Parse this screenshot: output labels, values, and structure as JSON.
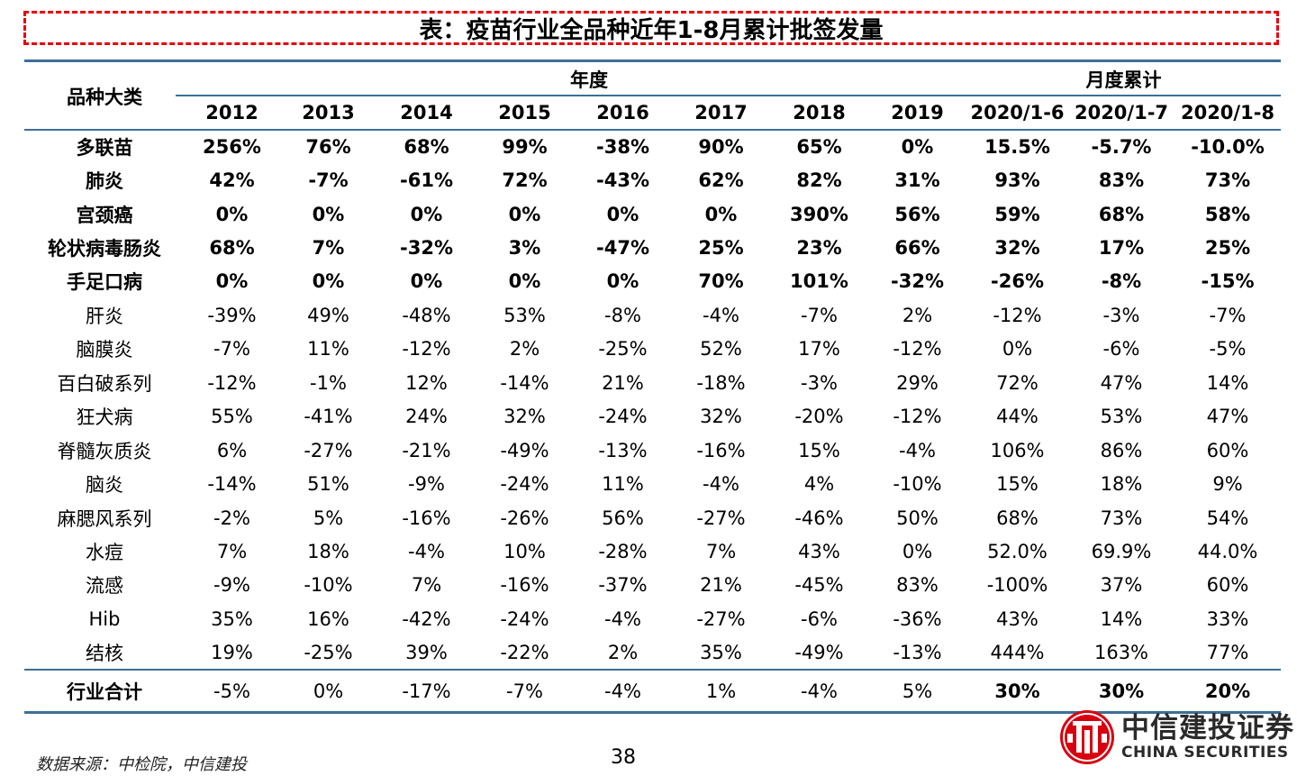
{
  "title": "表：疫苗行业全品种近年1-8月累计批签发量",
  "header": {
    "category_label": "品种大类",
    "group_annual": "年度",
    "group_monthly": "月度累计",
    "columns": [
      "2012",
      "2013",
      "2014",
      "2015",
      "2016",
      "2017",
      "2018",
      "2019",
      "2020/1-6",
      "2020/1-7",
      "2020/1-8"
    ]
  },
  "rows": [
    {
      "name": "多联苗",
      "bold": true,
      "values": [
        "256%",
        "76%",
        "68%",
        "99%",
        "-38%",
        "90%",
        "65%",
        "0%",
        "15.5%",
        "-5.7%",
        "-10.0%"
      ]
    },
    {
      "name": "肺炎",
      "bold": true,
      "values": [
        "42%",
        "-7%",
        "-61%",
        "72%",
        "-43%",
        "62%",
        "82%",
        "31%",
        "93%",
        "83%",
        "73%"
      ]
    },
    {
      "name": "宫颈癌",
      "bold": true,
      "values": [
        "0%",
        "0%",
        "0%",
        "0%",
        "0%",
        "0%",
        "390%",
        "56%",
        "59%",
        "68%",
        "58%"
      ]
    },
    {
      "name": "轮状病毒肠炎",
      "bold": true,
      "values": [
        "68%",
        "7%",
        "-32%",
        "3%",
        "-47%",
        "25%",
        "23%",
        "66%",
        "32%",
        "17%",
        "25%"
      ]
    },
    {
      "name": "手足口病",
      "bold": true,
      "values": [
        "0%",
        "0%",
        "0%",
        "0%",
        "0%",
        "70%",
        "101%",
        "-32%",
        "-26%",
        "-8%",
        "-15%"
      ]
    },
    {
      "name": "肝炎",
      "bold": false,
      "values": [
        "-39%",
        "49%",
        "-48%",
        "53%",
        "-8%",
        "-4%",
        "-7%",
        "2%",
        "-12%",
        "-3%",
        "-7%"
      ]
    },
    {
      "name": "脑膜炎",
      "bold": false,
      "values": [
        "-7%",
        "11%",
        "-12%",
        "2%",
        "-25%",
        "52%",
        "17%",
        "-12%",
        "0%",
        "-6%",
        "-5%"
      ]
    },
    {
      "name": "百白破系列",
      "bold": false,
      "values": [
        "-12%",
        "-1%",
        "12%",
        "-14%",
        "21%",
        "-18%",
        "-3%",
        "29%",
        "72%",
        "47%",
        "14%"
      ]
    },
    {
      "name": "狂犬病",
      "bold": false,
      "values": [
        "55%",
        "-41%",
        "24%",
        "32%",
        "-24%",
        "32%",
        "-20%",
        "-12%",
        "44%",
        "53%",
        "47%"
      ]
    },
    {
      "name": "脊髓灰质炎",
      "bold": false,
      "values": [
        "6%",
        "-27%",
        "-21%",
        "-49%",
        "-13%",
        "-16%",
        "15%",
        "-4%",
        "106%",
        "86%",
        "60%"
      ]
    },
    {
      "name": "脑炎",
      "bold": false,
      "values": [
        "-14%",
        "51%",
        "-9%",
        "-24%",
        "11%",
        "-4%",
        "4%",
        "-10%",
        "15%",
        "18%",
        "9%"
      ]
    },
    {
      "name": "麻腮风系列",
      "bold": false,
      "values": [
        "-2%",
        "5%",
        "-16%",
        "-26%",
        "56%",
        "-27%",
        "-46%",
        "50%",
        "68%",
        "73%",
        "54%"
      ]
    },
    {
      "name": "水痘",
      "bold": false,
      "values": [
        "7%",
        "18%",
        "-4%",
        "10%",
        "-28%",
        "7%",
        "43%",
        "0%",
        "52.0%",
        "69.9%",
        "44.0%"
      ]
    },
    {
      "name": "流感",
      "bold": false,
      "values": [
        "-9%",
        "-10%",
        "7%",
        "-16%",
        "-37%",
        "21%",
        "-45%",
        "83%",
        "-100%",
        "37%",
        "60%"
      ]
    },
    {
      "name": "Hib",
      "bold": false,
      "values": [
        "35%",
        "16%",
        "-42%",
        "-24%",
        "-4%",
        "-27%",
        "-6%",
        "-36%",
        "43%",
        "14%",
        "33%"
      ]
    },
    {
      "name": "结核",
      "bold": false,
      "values": [
        "19%",
        "-25%",
        "39%",
        "-22%",
        "2%",
        "35%",
        "-49%",
        "-13%",
        "444%",
        "163%",
        "77%"
      ]
    }
  ],
  "total": {
    "name": "行业合计",
    "values": [
      "-5%",
      "0%",
      "-17%",
      "-7%",
      "-4%",
      "1%",
      "-4%",
      "5%",
      "30%",
      "30%",
      "20%"
    ],
    "bold_from_index": 8
  },
  "footer": {
    "source": "数据来源：中检院，中信建投",
    "page_number": "38",
    "logo_cn": "中信建投证券",
    "logo_en": "CHINA SECURITIES"
  },
  "colors": {
    "title_border": "#e8000b",
    "rule": "#3d6f96",
    "logo_red": "#d7000f"
  }
}
